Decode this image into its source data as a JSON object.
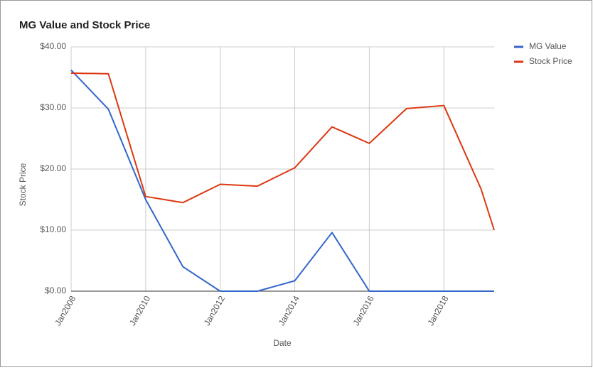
{
  "chart_data": {
    "type": "line",
    "title": "MG Value and Stock Price",
    "x_label": "Date",
    "y_label": "Stock Price",
    "x": [
      2008,
      2009,
      2010,
      2011,
      2012,
      2013,
      2014,
      2015,
      2016,
      2017,
      2018,
      2019,
      2019.35
    ],
    "series": [
      {
        "name": "MG Value",
        "color": "#3366cc",
        "values": [
          36.2,
          29.8,
          15,
          4,
          0,
          0,
          1.7,
          9.6,
          0,
          0,
          0,
          0,
          0
        ]
      },
      {
        "name": "Stock Price",
        "color": "#dc3912",
        "values": [
          35.7,
          35.6,
          15.5,
          14.5,
          17.5,
          17.2,
          20.2,
          26.9,
          24.2,
          29.9,
          30.4,
          16.7,
          10.0
        ]
      }
    ],
    "xlim": [
      2008,
      2019.35
    ],
    "xticks": [
      {
        "value": 2008,
        "label": "Jan2008"
      },
      {
        "value": 2010,
        "label": "Jan2010"
      },
      {
        "value": 2012,
        "label": "Jan2012"
      },
      {
        "value": 2014,
        "label": "Jan2014"
      },
      {
        "value": 2016,
        "label": "Jan2016"
      },
      {
        "value": 2018,
        "label": "Jan2018"
      }
    ],
    "ylim": [
      0,
      40
    ],
    "yticks": [
      {
        "value": 0,
        "label": "$0.00"
      },
      {
        "value": 10,
        "label": "$10.00"
      },
      {
        "value": 20,
        "label": "$20.00"
      },
      {
        "value": 30,
        "label": "$30.00"
      },
      {
        "value": 40,
        "label": "$40.00"
      }
    ],
    "grid": true,
    "legend": "right"
  }
}
